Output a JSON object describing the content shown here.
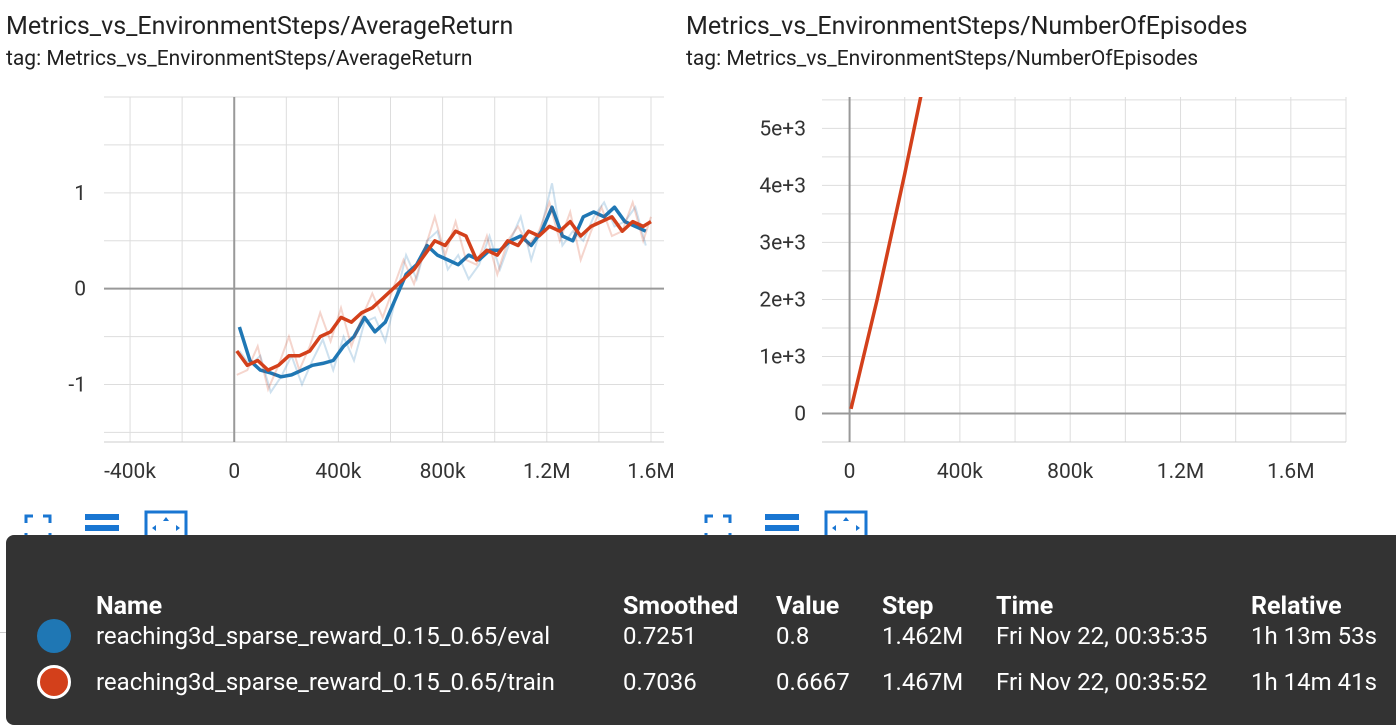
{
  "charts": [
    {
      "title": "Metrics_vs_EnvironmentSteps/AverageReturn",
      "tag": "tag: Metrics_vs_EnvironmentSteps/AverageReturn"
    },
    {
      "title": "Metrics_vs_EnvironmentSteps/NumberOfEpisodes",
      "tag": "tag: Metrics_vs_EnvironmentSteps/NumberOfEpisodes"
    }
  ],
  "chart_data": [
    {
      "type": "line",
      "title": "Metrics_vs_EnvironmentSteps/AverageReturn",
      "xlabel": "",
      "ylabel": "",
      "xlim": [
        -500000,
        1650000
      ],
      "ylim": [
        -1.6,
        2.0
      ],
      "x_ticks": [
        -400000,
        0,
        400000,
        800000,
        1200000,
        1600000
      ],
      "x_tick_labels": [
        "-400k",
        "0",
        "400k",
        "800k",
        "1.2M",
        "1.6M"
      ],
      "y_ticks": [
        1,
        0,
        -1
      ],
      "y_tick_labels": [
        "1",
        "0",
        "-1"
      ],
      "grid": true,
      "series": [
        {
          "name": "reaching3d_sparse_reward_0.15_0.65/eval",
          "color": "#1f77b4",
          "x": [
            20000,
            60000,
            100000,
            140000,
            180000,
            220000,
            260000,
            300000,
            340000,
            380000,
            420000,
            460000,
            500000,
            540000,
            580000,
            620000,
            660000,
            700000,
            740000,
            780000,
            820000,
            860000,
            900000,
            940000,
            980000,
            1020000,
            1060000,
            1100000,
            1140000,
            1180000,
            1220000,
            1260000,
            1300000,
            1340000,
            1380000,
            1420000,
            1460000,
            1500000,
            1540000,
            1580000
          ],
          "values": [
            -0.4,
            -0.75,
            -0.85,
            -0.88,
            -0.92,
            -0.9,
            -0.85,
            -0.8,
            -0.78,
            -0.75,
            -0.6,
            -0.5,
            -0.3,
            -0.45,
            -0.35,
            -0.1,
            0.15,
            0.25,
            0.45,
            0.35,
            0.3,
            0.25,
            0.35,
            0.3,
            0.4,
            0.4,
            0.5,
            0.55,
            0.45,
            0.6,
            0.85,
            0.55,
            0.5,
            0.75,
            0.8,
            0.75,
            0.85,
            0.7,
            0.65,
            0.6
          ]
        },
        {
          "name": "reaching3d_sparse_reward_0.15_0.65/train",
          "color": "#d3401b",
          "x": [
            10000,
            50000,
            90000,
            130000,
            170000,
            210000,
            250000,
            290000,
            330000,
            370000,
            410000,
            450000,
            490000,
            530000,
            570000,
            610000,
            650000,
            690000,
            730000,
            770000,
            810000,
            850000,
            890000,
            930000,
            970000,
            1010000,
            1050000,
            1090000,
            1130000,
            1170000,
            1210000,
            1250000,
            1290000,
            1330000,
            1370000,
            1410000,
            1450000,
            1490000,
            1530000,
            1570000,
            1600000
          ],
          "values": [
            -0.65,
            -0.8,
            -0.75,
            -0.85,
            -0.8,
            -0.7,
            -0.7,
            -0.65,
            -0.5,
            -0.45,
            -0.3,
            -0.35,
            -0.25,
            -0.2,
            -0.1,
            0.0,
            0.1,
            0.2,
            0.35,
            0.5,
            0.45,
            0.6,
            0.55,
            0.3,
            0.4,
            0.35,
            0.5,
            0.45,
            0.6,
            0.55,
            0.65,
            0.6,
            0.7,
            0.55,
            0.65,
            0.7,
            0.75,
            0.6,
            0.7,
            0.65,
            0.7
          ]
        }
      ]
    },
    {
      "type": "line",
      "title": "Metrics_vs_EnvironmentSteps/NumberOfEpisodes",
      "xlabel": "",
      "ylabel": "",
      "xlim": [
        -100000,
        1800000
      ],
      "ylim": [
        -500,
        5550
      ],
      "x_ticks": [
        0,
        400000,
        800000,
        1200000,
        1600000
      ],
      "x_tick_labels": [
        "0",
        "400k",
        "800k",
        "1.2M",
        "1.6M"
      ],
      "y_ticks": [
        5000,
        4000,
        3000,
        2000,
        1000,
        0
      ],
      "y_tick_labels": [
        "5e+3",
        "4e+3",
        "3e+3",
        "2e+3",
        "1e+3",
        "0"
      ],
      "grid": true,
      "series": [
        {
          "name": "reaching3d_sparse_reward_0.15_0.65/train",
          "color": "#d3401b",
          "x": [
            5000,
            100000,
            200000,
            260000
          ],
          "values": [
            80,
            2000,
            4200,
            5600
          ]
        }
      ]
    }
  ],
  "toolbar": {
    "icons": [
      "fullscreen-icon",
      "toggle-y-log-icon",
      "fit-domain-icon"
    ]
  },
  "tooltip": {
    "headers": {
      "name": "Name",
      "smoothed": "Smoothed",
      "value": "Value",
      "step": "Step",
      "time": "Time",
      "relative": "Relative"
    },
    "rows": [
      {
        "color": "#1f77b4",
        "name": "reaching3d_sparse_reward_0.15_0.65/eval",
        "smoothed": "0.7251",
        "value": "0.8",
        "step": "1.462M",
        "time": "Fri Nov 22, 00:35:35",
        "relative": "1h 13m 53s"
      },
      {
        "color": "#d3401b",
        "name": "reaching3d_sparse_reward_0.15_0.65/train",
        "smoothed": "0.7036",
        "value": "0.6667",
        "step": "1.467M",
        "time": "Fri Nov 22, 00:35:52",
        "relative": "1h 14m 41s"
      }
    ]
  }
}
